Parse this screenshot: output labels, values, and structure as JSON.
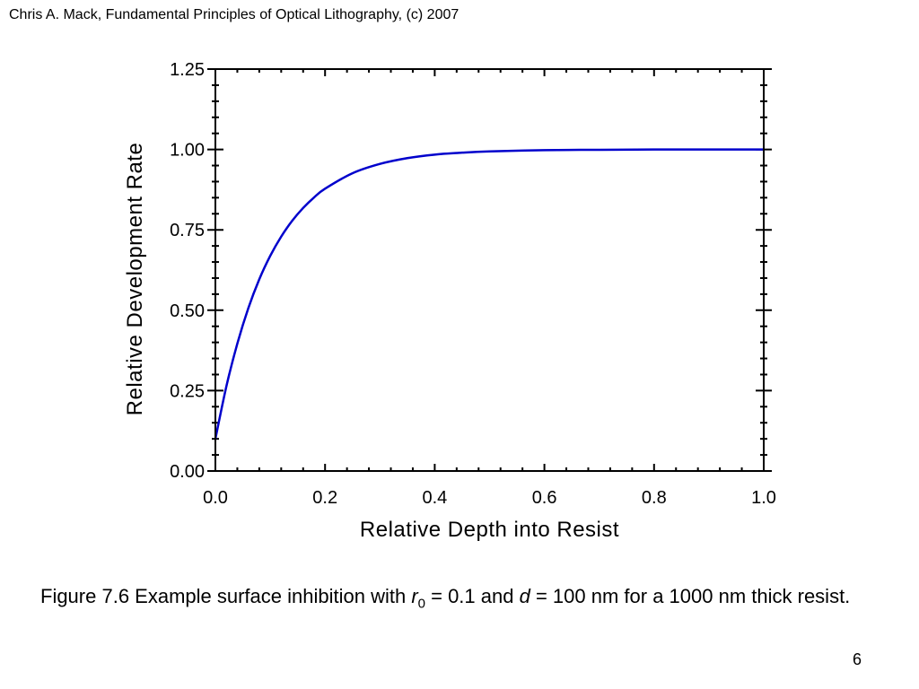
{
  "header": "Chris A. Mack, Fundamental Principles of Optical Lithography, (c) 2007",
  "caption": {
    "prefix": "Figure 7.6  Example surface inhibition with ",
    "var1": "r",
    "var1_sub": "0",
    "mid1": " = 0.1 and ",
    "var2": "d",
    "rest": " = 100 nm for a 1000 nm thick resist."
  },
  "page_number": "6",
  "chart_data": {
    "type": "line",
    "title": "",
    "xlabel": "Relative Depth into Resist",
    "ylabel": "Relative Development Rate",
    "xlim": [
      0,
      1
    ],
    "ylim": [
      0,
      1.25
    ],
    "x_ticks": [
      "0.0",
      "0.2",
      "0.4",
      "0.6",
      "0.8",
      "1.0"
    ],
    "y_ticks": [
      "0.00",
      "0.25",
      "0.50",
      "0.75",
      "1.00",
      "1.25"
    ],
    "grid": false,
    "series": [
      {
        "color": "#0000cc",
        "x": [
          0,
          0.02,
          0.04,
          0.06,
          0.08,
          0.1,
          0.12,
          0.14,
          0.16,
          0.18,
          0.2,
          0.25,
          0.3,
          0.35,
          0.4,
          0.45,
          0.5,
          0.6,
          0.7,
          0.8,
          0.9,
          1.0
        ],
        "y": [
          0.1,
          0.263,
          0.396,
          0.506,
          0.596,
          0.669,
          0.729,
          0.778,
          0.818,
          0.851,
          0.878,
          0.926,
          0.955,
          0.973,
          0.984,
          0.99,
          0.994,
          0.998,
          0.999,
          1.0,
          1.0,
          1.0
        ]
      }
    ]
  }
}
